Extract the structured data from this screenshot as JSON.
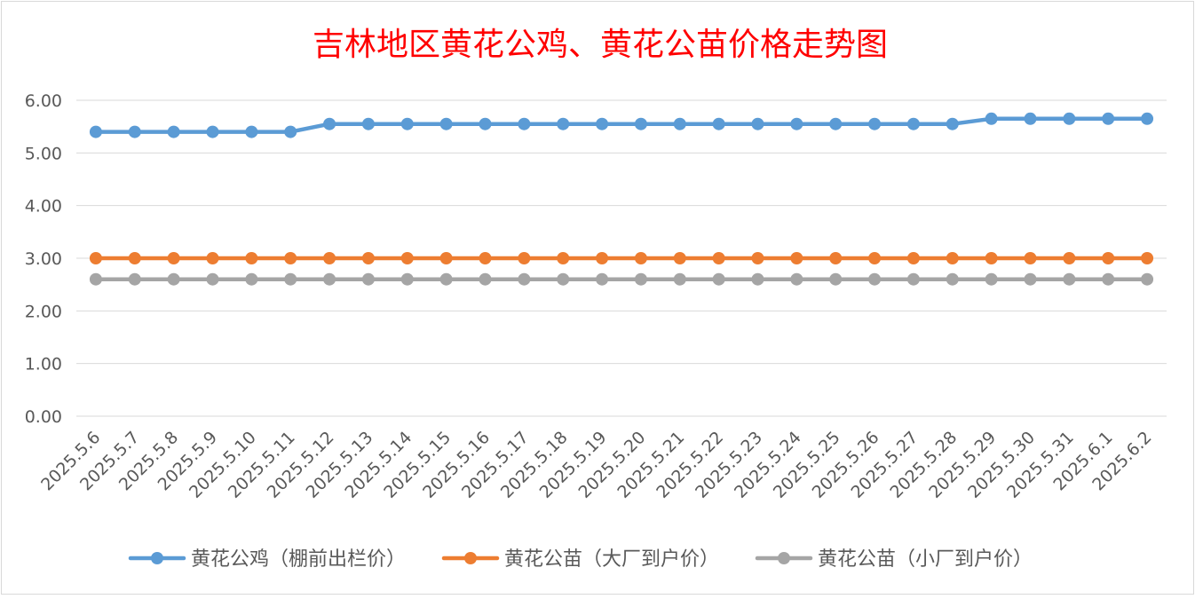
{
  "chart_data": {
    "type": "line",
    "title": "吉林地区黄花公鸡、黄花公苗价格走势图",
    "xlabel": "",
    "ylabel": "",
    "ylim": [
      0,
      6
    ],
    "yticks": [
      "0.00",
      "1.00",
      "2.00",
      "3.00",
      "4.00",
      "5.00",
      "6.00"
    ],
    "categories": [
      "2025.5.6",
      "2025.5.7",
      "2025.5.8",
      "2025.5.9",
      "2025.5.10",
      "2025.5.11",
      "2025.5.12",
      "2025.5.13",
      "2025.5.14",
      "2025.5.15",
      "2025.5.16",
      "2025.5.17",
      "2025.5.18",
      "2025.5.19",
      "2025.5.20",
      "2025.5.21",
      "2025.5.22",
      "2025.5.23",
      "2025.5.24",
      "2025.5.25",
      "2025.5.26",
      "2025.5.27",
      "2025.5.28",
      "2025.5.29",
      "2025.5.30",
      "2025.5.31",
      "2025.6.1",
      "2025.6.2"
    ],
    "series": [
      {
        "name": "黄花公鸡（棚前出栏价）",
        "color": "#5b9bd5",
        "values": [
          5.4,
          5.4,
          5.4,
          5.4,
          5.4,
          5.4,
          5.55,
          5.55,
          5.55,
          5.55,
          5.55,
          5.55,
          5.55,
          5.55,
          5.55,
          5.55,
          5.55,
          5.55,
          5.55,
          5.55,
          5.55,
          5.55,
          5.55,
          5.65,
          5.65,
          5.65,
          5.65,
          5.65
        ]
      },
      {
        "name": "黄花公苗（大厂到户价）",
        "color": "#ed7d31",
        "values": [
          3.0,
          3.0,
          3.0,
          3.0,
          3.0,
          3.0,
          3.0,
          3.0,
          3.0,
          3.0,
          3.0,
          3.0,
          3.0,
          3.0,
          3.0,
          3.0,
          3.0,
          3.0,
          3.0,
          3.0,
          3.0,
          3.0,
          3.0,
          3.0,
          3.0,
          3.0,
          3.0,
          3.0
        ]
      },
      {
        "name": "黄花公苗（小厂到户价）",
        "color": "#a5a5a5",
        "values": [
          2.6,
          2.6,
          2.6,
          2.6,
          2.6,
          2.6,
          2.6,
          2.6,
          2.6,
          2.6,
          2.6,
          2.6,
          2.6,
          2.6,
          2.6,
          2.6,
          2.6,
          2.6,
          2.6,
          2.6,
          2.6,
          2.6,
          2.6,
          2.6,
          2.6,
          2.6,
          2.6,
          2.6
        ]
      }
    ],
    "grid": true,
    "legend": "bottom",
    "title_color": "#ff0000"
  }
}
